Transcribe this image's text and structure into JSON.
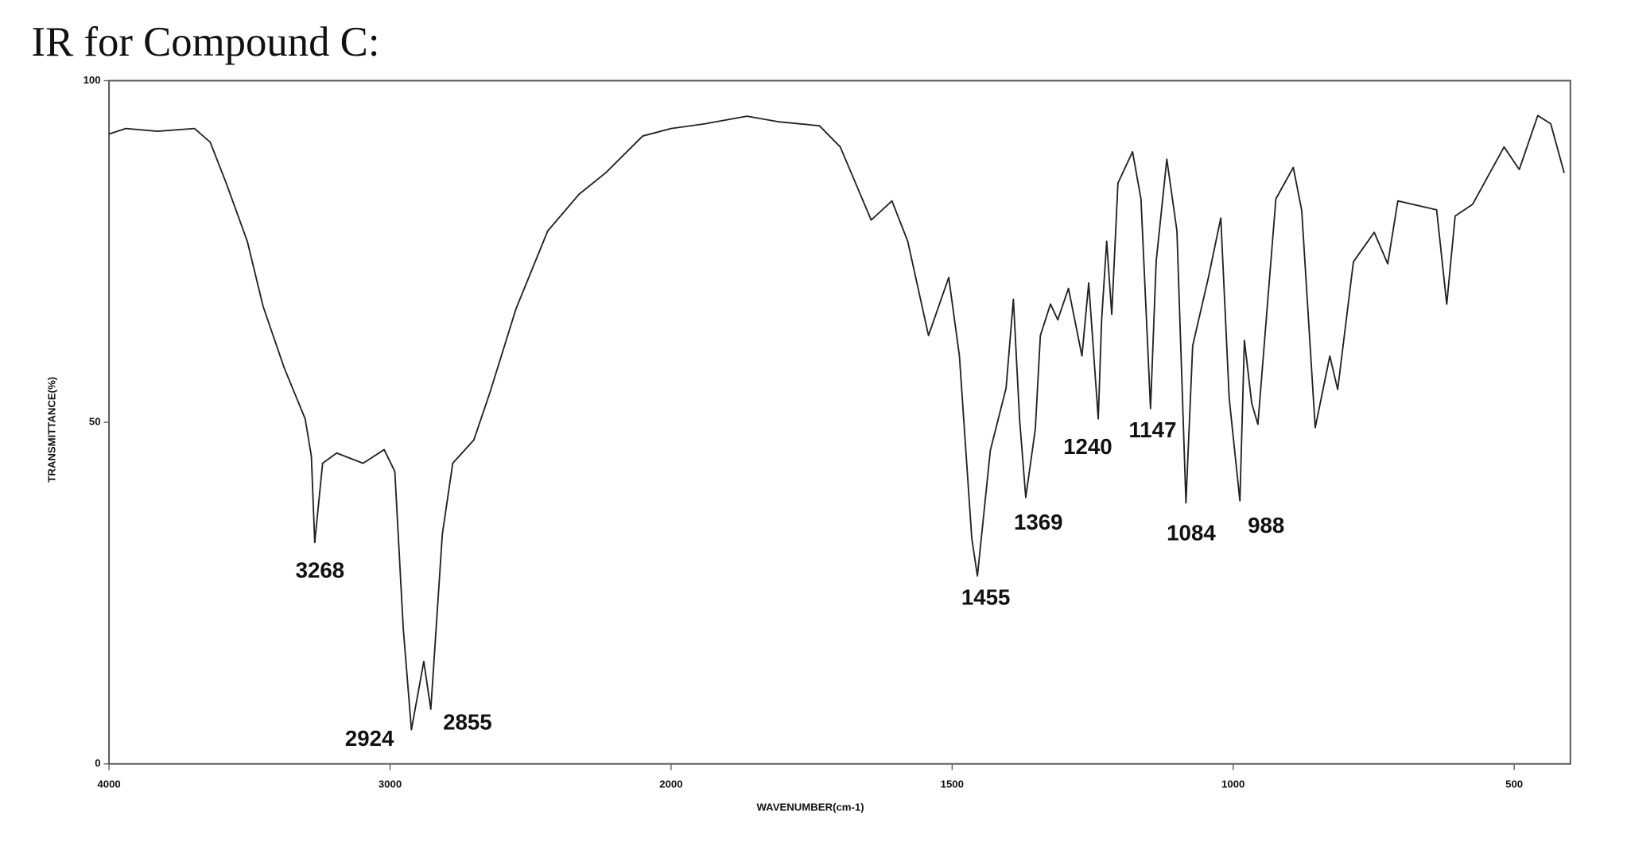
{
  "chart_data": {
    "type": "line",
    "title": "IR for Compound C:",
    "xlabel": "WAVENUMBER(cm-1)",
    "ylabel": "TRANSMITTANCE(%)",
    "xlim": [
      4000,
      400
    ],
    "xticks": [
      4000,
      3000,
      2000,
      1500,
      1000,
      500
    ],
    "x_scale_change": 2000,
    "ylim": [
      0,
      100
    ],
    "yticks": [
      0,
      50,
      100
    ],
    "x": [
      4000,
      3940,
      3827,
      3696,
      3640,
      3583,
      3508,
      3452,
      3377,
      3302,
      3280,
      3268,
      3240,
      3190,
      3096,
      3021,
      2983,
      2953,
      2924,
      2880,
      2855,
      2814,
      2777,
      2702,
      2645,
      2552,
      2439,
      2327,
      2233,
      2101,
      2000,
      1939,
      1865,
      1810,
      1736,
      1699,
      1644,
      1607,
      1579,
      1542,
      1506,
      1487,
      1465,
      1455,
      1432,
      1404,
      1391,
      1380,
      1369,
      1352,
      1343,
      1325,
      1312,
      1293,
      1269,
      1257,
      1240,
      1234,
      1225,
      1216,
      1205,
      1179,
      1164,
      1147,
      1137,
      1118,
      1100,
      1084,
      1072,
      1044,
      1022,
      1007,
      988,
      980,
      967,
      956,
      924,
      893,
      878,
      854,
      828,
      814,
      786,
      749,
      725,
      707,
      638,
      620,
      605,
      574,
      518,
      491,
      458,
      435,
      411
    ],
    "series": [
      {
        "name": "IR",
        "color": "#222222",
        "values": [
          92.2,
          93,
          92.6,
          93,
          91,
          85,
          76.5,
          67,
          58,
          50.5,
          45,
          32.4,
          44,
          45.5,
          44,
          46,
          42.8,
          19.8,
          5,
          15,
          8,
          33.6,
          44,
          47.4,
          54.3,
          66.6,
          78,
          83.4,
          86.5,
          91.9,
          93,
          93.7,
          94.8,
          94,
          93.4,
          90.3,
          79.6,
          82.4,
          76.5,
          62.7,
          71.2,
          59.7,
          33,
          27.5,
          45.9,
          55,
          68,
          50.5,
          39,
          49,
          62.7,
          67.3,
          65,
          69.6,
          59.7,
          70.4,
          50.5,
          65,
          76.5,
          65.8,
          85,
          89.6,
          82.7,
          52,
          73.5,
          88.5,
          78,
          38.2,
          61.2,
          71.2,
          79.9,
          53.5,
          38.5,
          62,
          52.8,
          49.7,
          82.7,
          87.3,
          81,
          49.2,
          59.7,
          54.8,
          73.5,
          77.8,
          73.2,
          82.4,
          81.1,
          67.3,
          80.2,
          81.9,
          90.3,
          87,
          94.9,
          93.7,
          86.5
        ]
      }
    ],
    "annotations": [
      {
        "x": 3268,
        "y": 32.4
      },
      {
        "x": 2924,
        "y": 5
      },
      {
        "x": 2855,
        "y": 8
      },
      {
        "x": 1455,
        "y": 27.5
      },
      {
        "x": 1369,
        "y": 39
      },
      {
        "x": 1240,
        "y": 50.5
      },
      {
        "x": 1147,
        "y": 52
      },
      {
        "x": 1084,
        "y": 38.2
      },
      {
        "x": 988,
        "y": 38.5
      }
    ]
  }
}
